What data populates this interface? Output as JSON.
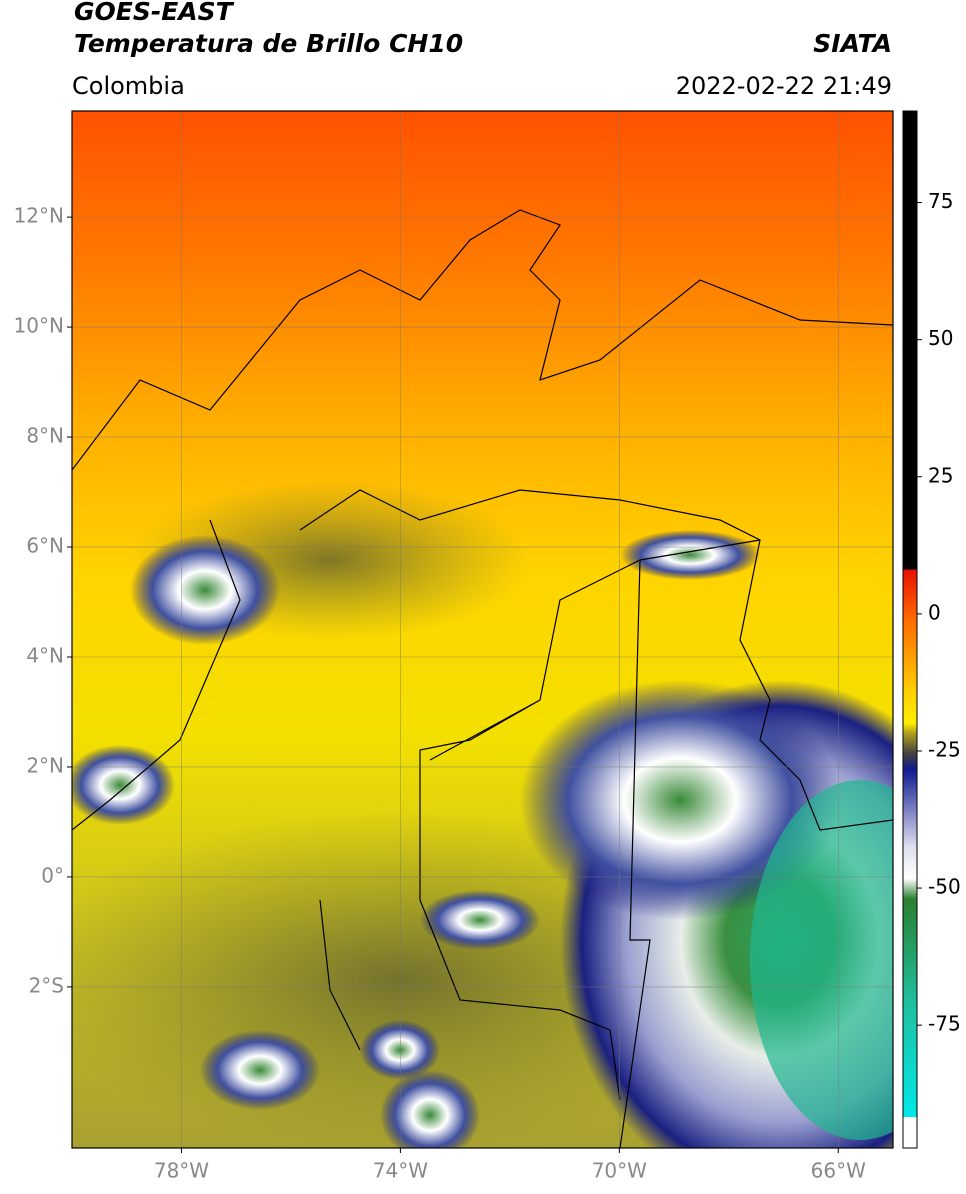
{
  "header": {
    "title_line1": "GOES-EAST",
    "title_line2": "Temperatura de Brillo CH10",
    "source": "SIATA",
    "region": "Colombia",
    "datetime": "2022-02-22 21:49"
  },
  "map": {
    "lon_range": [
      -80,
      -65
    ],
    "lat_range": [
      -4.93,
      13.93
    ],
    "lat_ticks": [
      {
        "value": 12,
        "label": "12°N"
      },
      {
        "value": 10,
        "label": "10°N"
      },
      {
        "value": 8,
        "label": "8°N"
      },
      {
        "value": 6,
        "label": "6°N"
      },
      {
        "value": 4,
        "label": "4°N"
      },
      {
        "value": 2,
        "label": "2°N"
      },
      {
        "value": 0,
        "label": "0°"
      },
      {
        "value": -2,
        "label": "2°S"
      }
    ],
    "lon_ticks": [
      {
        "value": -78,
        "label": "78°W"
      },
      {
        "value": -74,
        "label": "74°W"
      },
      {
        "value": -70,
        "label": "70°W"
      },
      {
        "value": -66,
        "label": "66°W"
      }
    ],
    "grid": true
  },
  "colorbar": {
    "range": [
      -97.4,
      91.7
    ],
    "ticks": [
      75,
      50,
      25,
      0,
      -25,
      -50,
      -75
    ]
  }
}
